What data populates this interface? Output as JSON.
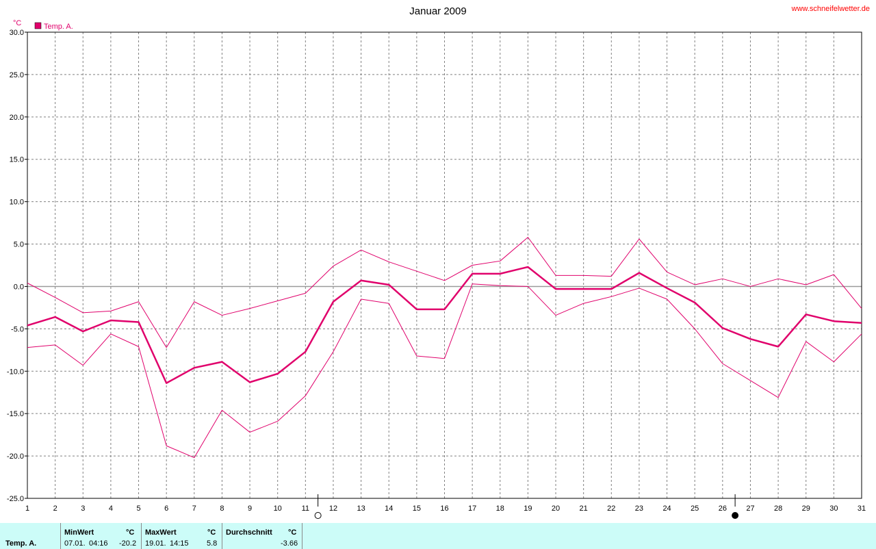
{
  "source": "www.schneifelwetter.de",
  "chart_data": {
    "type": "line",
    "title": "Januar 2009",
    "y_unit": "°C",
    "ylim": [
      -25,
      30
    ],
    "ytick_labels": [
      "30.0",
      "25.0",
      "20.0",
      "15.0",
      "10.0",
      "5.0",
      "0.0",
      "-5.0",
      "-10.0",
      "-15.0",
      "-20.0",
      "-25.0"
    ],
    "ytick_values": [
      30,
      25,
      20,
      15,
      10,
      5,
      0,
      -5,
      -10,
      -15,
      -20,
      -25
    ],
    "x": [
      1,
      2,
      3,
      4,
      5,
      6,
      7,
      8,
      9,
      10,
      11,
      12,
      13,
      14,
      15,
      16,
      17,
      18,
      19,
      20,
      21,
      22,
      23,
      24,
      25,
      26,
      27,
      28,
      29,
      30,
      31
    ],
    "xlim": [
      1,
      31
    ],
    "grid": true,
    "legend": {
      "label": "Temp. A.",
      "color": "#e0006b",
      "position": "top-left"
    },
    "series": [
      {
        "name": "Temp. A.",
        "color": "#e0006b",
        "values": [
          -4.6,
          -3.6,
          -5.3,
          -4.0,
          -4.2,
          -11.4,
          -9.6,
          -8.9,
          -11.3,
          -10.3,
          -7.7,
          -1.8,
          0.7,
          0.2,
          -2.7,
          -2.7,
          1.5,
          1.5,
          2.3,
          -0.3,
          -0.3,
          -0.3,
          1.6,
          -0.2,
          -1.9,
          -4.9,
          -6.2,
          -7.1,
          -3.3,
          -4.1,
          -4.3
        ]
      },
      {
        "color": "#e0006b",
        "values": [
          0.4,
          -1.3,
          -3.1,
          -2.9,
          -1.8,
          -7.2,
          -1.8,
          -3.4,
          -2.6,
          -1.7,
          -0.8,
          2.4,
          4.3,
          2.9,
          1.8,
          0.7,
          2.5,
          3.0,
          5.8,
          1.3,
          1.3,
          1.2,
          5.6,
          1.7,
          0.2,
          0.9,
          0.0,
          0.9,
          0.2,
          1.4,
          -2.6
        ]
      },
      {
        "color": "#e0006b",
        "values": [
          -7.2,
          -6.9,
          -9.3,
          -5.6,
          -7.1,
          -18.8,
          -20.2,
          -14.6,
          -17.2,
          -15.9,
          -12.9,
          -7.7,
          -1.5,
          -2.0,
          -8.2,
          -8.5,
          0.3,
          0.1,
          0.0,
          -3.4,
          -2.0,
          -1.2,
          -0.2,
          -1.5,
          -5.0,
          -9.1,
          -11.1,
          -13.1,
          -6.5,
          -8.9,
          -5.6
        ]
      }
    ],
    "moon_phases": [
      {
        "day": 11,
        "phase": "full-moon"
      },
      {
        "day": 26,
        "phase": "new-moon"
      }
    ]
  },
  "stats": {
    "row_label": "Temp. A.",
    "min": {
      "header": "MinWert",
      "unit": "°C",
      "date": "07.01.",
      "time": "04:16",
      "value": "-20.2"
    },
    "max": {
      "header": "MaxWert",
      "unit": "°C",
      "date": "19.01.",
      "time": "14:15",
      "value": "5.8"
    },
    "avg": {
      "header": "Durchschnitt",
      "unit": "°C",
      "value": "-3.66"
    }
  }
}
